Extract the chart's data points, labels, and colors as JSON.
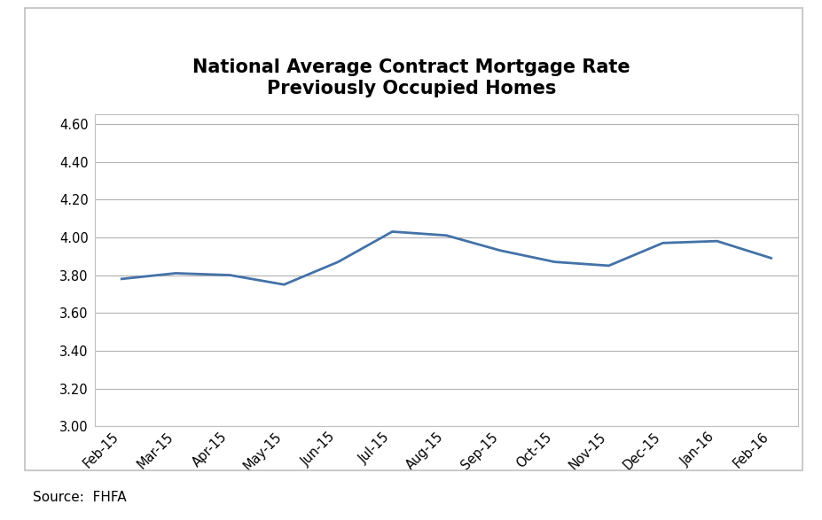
{
  "title_line1": "National Average Contract Mortgage Rate",
  "title_line2": "Previously Occupied Homes",
  "categories": [
    "Feb-15",
    "Mar-15",
    "Apr-15",
    "May-15",
    "Jun-15",
    "Jul-15",
    "Aug-15",
    "Sep-15",
    "Oct-15",
    "Nov-15",
    "Dec-15",
    "Jan-16",
    "Feb-16"
  ],
  "values": [
    3.78,
    3.81,
    3.8,
    3.75,
    3.87,
    4.03,
    4.01,
    3.93,
    3.87,
    3.85,
    3.97,
    3.98,
    3.89
  ],
  "line_color": "#4472a8",
  "line_width": 2.0,
  "ylim_min": 3.0,
  "ylim_max": 4.65,
  "ytick_step": 0.2,
  "background_color": "#ffffff",
  "plot_area_color": "#ffffff",
  "grid_color": "#b0b0b0",
  "border_color": "#c0c0c0",
  "title_fontsize": 15,
  "tick_fontsize": 10.5,
  "source_text": "Source:  FHFA",
  "source_fontsize": 11
}
